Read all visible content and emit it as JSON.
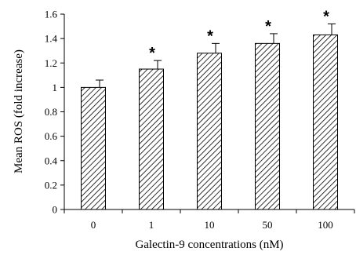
{
  "chart_data": {
    "type": "bar",
    "categories": [
      "0",
      "1",
      "10",
      "50",
      "100"
    ],
    "values": [
      1.0,
      1.15,
      1.28,
      1.36,
      1.43
    ],
    "errors": [
      0.06,
      0.07,
      0.08,
      0.08,
      0.09
    ],
    "significance": [
      "",
      "*",
      "*",
      "*",
      "*"
    ],
    "xlabel": "Galectin-9  concentrations (nM)",
    "ylabel": "Mean ROS (fold increase)",
    "ylim": [
      0,
      1.6
    ],
    "yticks": [
      "0",
      "0.2",
      "0.4",
      "0.6",
      "0.8",
      "1",
      "1.2",
      "1.4",
      "1.6"
    ],
    "bar_pattern": "diagonal-hatch",
    "grid": false,
    "colors": {
      "bar_fill": "#ffffff",
      "hatch": "#000000",
      "axis": "#000000"
    }
  }
}
